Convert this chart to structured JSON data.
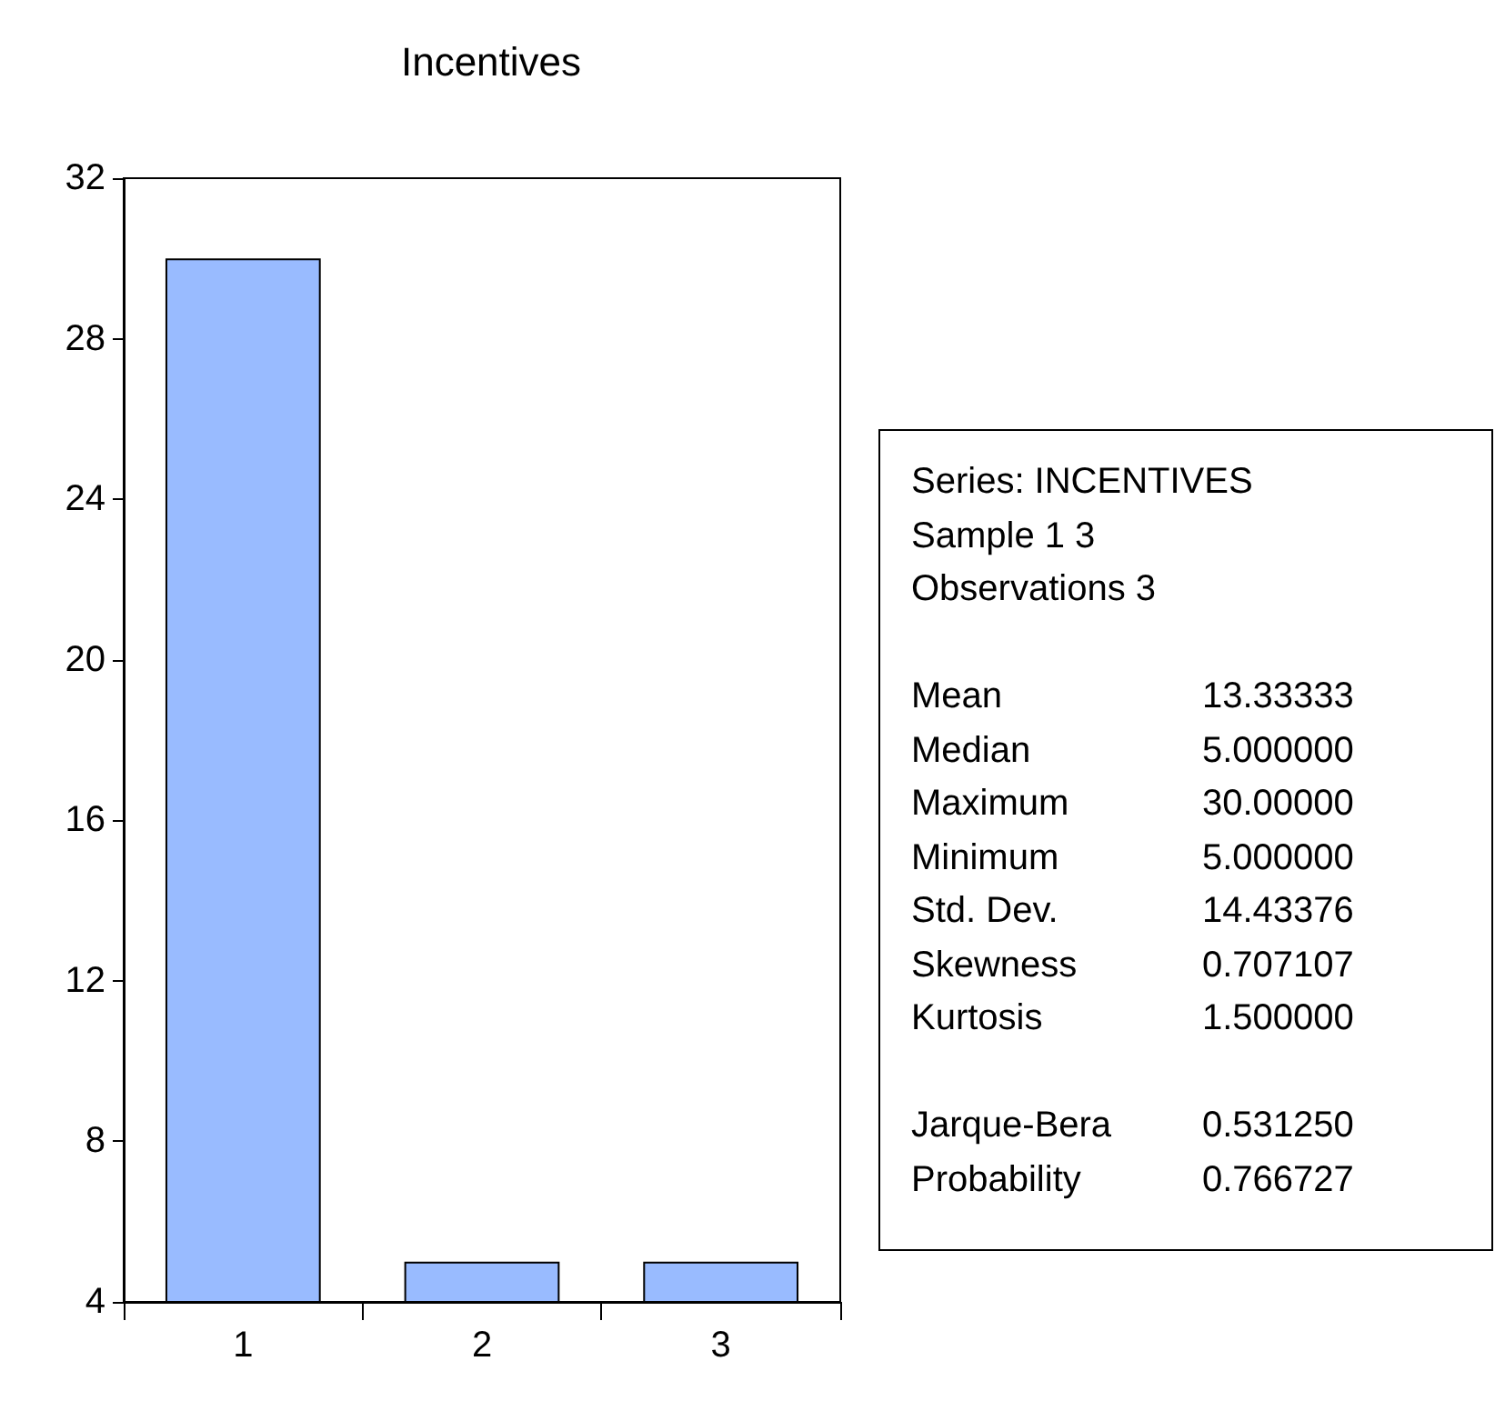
{
  "chart_data": {
    "type": "bar",
    "title": "Incentives",
    "categories": [
      "1",
      "2",
      "3"
    ],
    "values": [
      30,
      5,
      5
    ],
    "color": "#99bbff",
    "ylim": [
      4,
      32
    ],
    "yticks": [
      4,
      8,
      12,
      16,
      20,
      24,
      28,
      32
    ],
    "grid": false,
    "annotations": [
      "Series: INCENTIVES",
      "Sample 1 3",
      "Observations 3",
      "Mean",
      "13.33333",
      "Median",
      "5.000000",
      "Maximum",
      "30.00000",
      "Minimum",
      "5.000000",
      "Std. Dev.",
      "14.43376",
      "Skewness",
      "0.707107",
      "Kurtosis",
      "1.500000",
      "Jarque-Bera",
      "0.531250",
      "Probability",
      "0.766727"
    ]
  }
}
